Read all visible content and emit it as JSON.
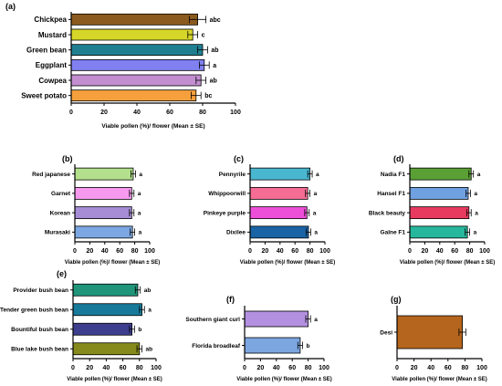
{
  "figure": {
    "panel_labels": [
      "(a)",
      "(b)",
      "(c)",
      "(d)",
      "(e)",
      "(f)",
      "(g)"
    ]
  },
  "chart_data": [
    {
      "panel": "(a)",
      "type": "bar",
      "orientation": "horizontal",
      "categories": [
        "Chickpea",
        "Mustard",
        "Green bean",
        "Eggplant",
        "Cowpea",
        "Sweet potato"
      ],
      "values": [
        77,
        74,
        80,
        81,
        79,
        76
      ],
      "errors": [
        5,
        3,
        3,
        3,
        3,
        3
      ],
      "letters": [
        "abc",
        "c",
        "ab",
        "a",
        "ab",
        "bc"
      ],
      "colors": [
        "#8b5a1e",
        "#d6d62a",
        "#1f7f91",
        "#8080f0",
        "#c28ed0",
        "#f5a03d"
      ],
      "xlabel": "Viable pollen (%)/ flower (Mean ± SE)",
      "xlim": [
        0,
        100
      ],
      "xticks": [
        "0",
        "20",
        "40",
        "60",
        "80",
        "100"
      ]
    },
    {
      "panel": "(b)",
      "type": "bar",
      "orientation": "horizontal",
      "categories": [
        "Red japanese",
        "Garnet",
        "Korean",
        "Murasaki"
      ],
      "values": [
        78,
        76,
        76,
        77
      ],
      "errors": [
        3,
        3,
        3,
        3
      ],
      "letters": [
        "a",
        "a",
        "a",
        "a"
      ],
      "colors": [
        "#b2e08c",
        "#f799ef",
        "#a58cd5",
        "#7da7e2"
      ],
      "xlabel": "Viable pollen (%)/ flower (Mean ± SE)",
      "xlim": [
        0,
        100
      ],
      "xticks": [
        "0",
        "20",
        "40",
        "60",
        "80",
        "100"
      ]
    },
    {
      "panel": "(c)",
      "type": "bar",
      "orientation": "horizontal",
      "categories": [
        "Pennyrile",
        "Whippoorwill",
        "Pinkeye purple",
        "Dixilee"
      ],
      "values": [
        80,
        77,
        76,
        78
      ],
      "errors": [
        3,
        3,
        3,
        3
      ],
      "letters": [
        "a",
        "a",
        "a",
        "a"
      ],
      "colors": [
        "#4ab7d1",
        "#f56d94",
        "#ee4fd9",
        "#1a63a4"
      ],
      "xlabel": "Viable pollen (%)/ flower (Mean ± SE)",
      "xlim": [
        0,
        100
      ],
      "xticks": [
        "0",
        "20",
        "40",
        "60",
        "80",
        "100"
      ]
    },
    {
      "panel": "(d)",
      "type": "bar",
      "orientation": "horizontal",
      "categories": [
        "Nadia F1",
        "Hansel F1",
        "Black beauty",
        "Galne F1"
      ],
      "values": [
        82,
        78,
        79,
        77
      ],
      "errors": [
        3,
        3,
        3,
        3
      ],
      "letters": [
        "a",
        "a",
        "a",
        "a"
      ],
      "colors": [
        "#5aa035",
        "#6fa0e0",
        "#e83a5e",
        "#27b79c"
      ],
      "xlabel": "Viable pollen (%)/ flower (Mean ± SE)",
      "xlim": [
        0,
        100
      ],
      "xticks": [
        "0",
        "20",
        "40",
        "60",
        "80",
        "100"
      ]
    },
    {
      "panel": "(e)",
      "type": "bar",
      "orientation": "horizontal",
      "categories": [
        "Provider bush bean",
        "Tender green bush bean",
        "Bountiful bush bean",
        "Blue lake bush bean"
      ],
      "values": [
        78,
        83,
        71,
        80
      ],
      "errors": [
        3,
        3,
        3,
        3
      ],
      "letters": [
        "ab",
        "a",
        "b",
        "ab"
      ],
      "colors": [
        "#20957a",
        "#177a9a",
        "#3d3f8e",
        "#868a1c"
      ],
      "xlabel": "Viable pollen (%)/ flower (Mean ± SE)",
      "xlim": [
        0,
        100
      ],
      "xticks": [
        "0",
        "20",
        "40",
        "60",
        "80",
        "100"
      ]
    },
    {
      "panel": "(f)",
      "type": "bar",
      "orientation": "horizontal",
      "categories": [
        "Southern giant curl",
        "Florida broadleaf"
      ],
      "values": [
        80,
        70
      ],
      "errors": [
        3,
        3
      ],
      "letters": [
        "a",
        "b"
      ],
      "colors": [
        "#b390e0",
        "#7ca6e0"
      ],
      "xlabel": "Viable pollen (%)/ flower (Mean ± SE)",
      "xlim": [
        0,
        100
      ],
      "xticks": [
        "0",
        "20",
        "40",
        "60",
        "80",
        "100"
      ]
    },
    {
      "panel": "(g)",
      "type": "bar",
      "orientation": "horizontal",
      "categories": [
        "Desi"
      ],
      "values": [
        77
      ],
      "errors": [
        4
      ],
      "letters": [
        ""
      ],
      "colors": [
        "#b5651d"
      ],
      "xlabel": "Viable pollen (%)/ flower (Mean ± SE)",
      "xlim": [
        0,
        100
      ],
      "xticks": [
        "0",
        "20",
        "40",
        "60",
        "80",
        "100"
      ]
    }
  ]
}
